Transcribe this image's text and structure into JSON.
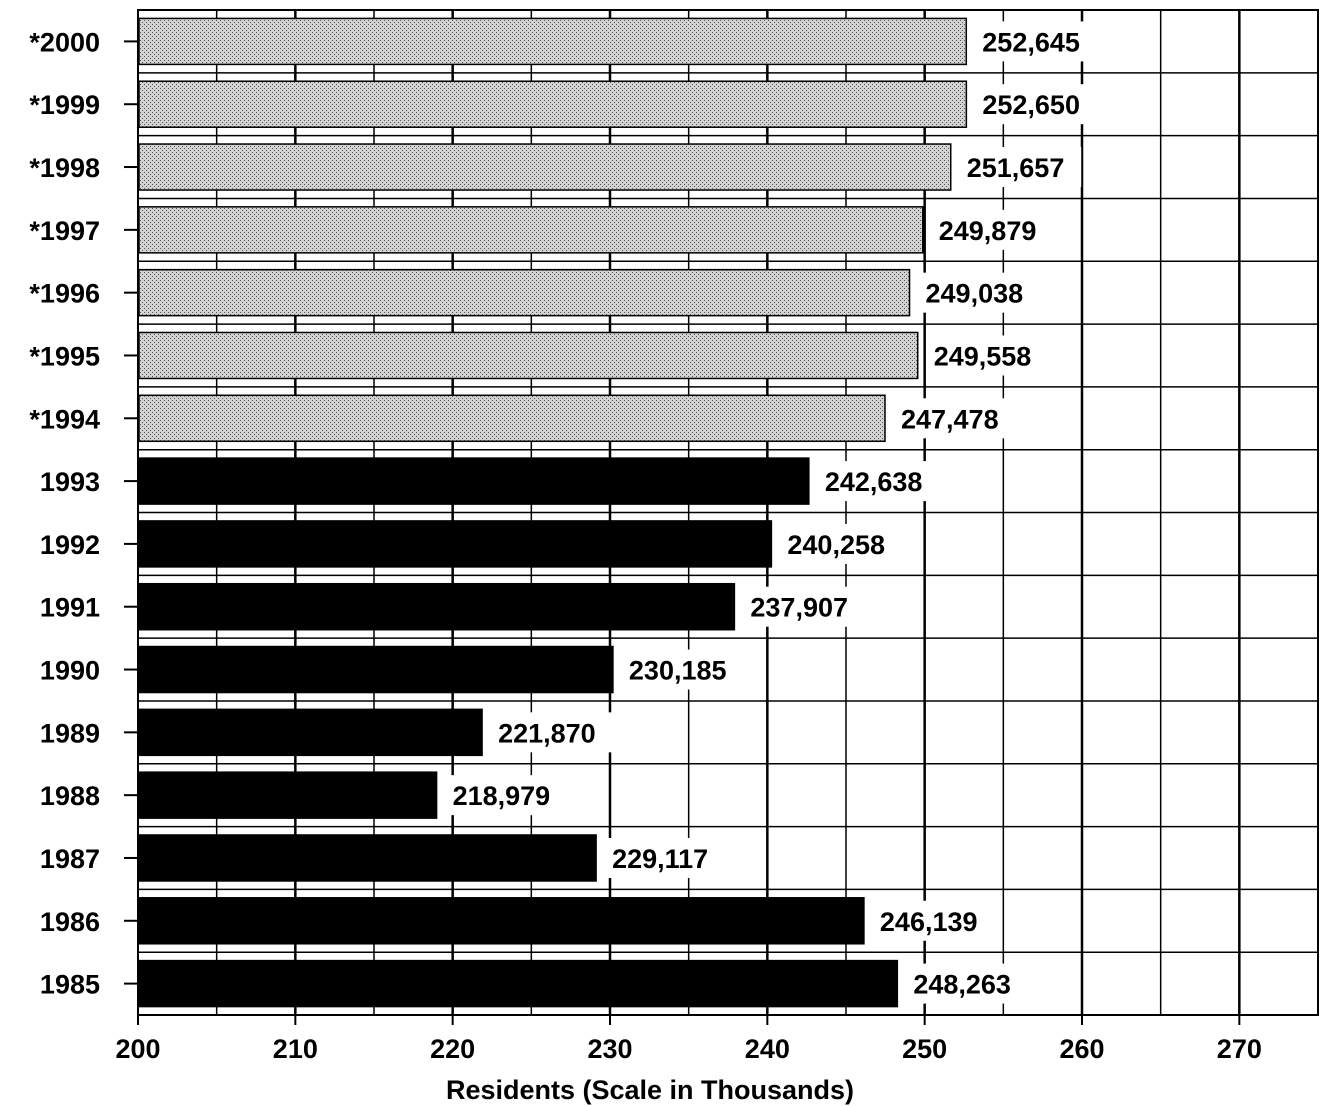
{
  "chart_data": {
    "type": "bar",
    "orientation": "horizontal",
    "xlabel": "Residents  (Scale in Thousands)",
    "xlim": [
      200,
      275
    ],
    "xticks": [
      200,
      210,
      220,
      230,
      240,
      250,
      260,
      270
    ],
    "categories": [
      "*2000",
      "*1999",
      "*1998",
      "*1997",
      "*1996",
      "*1995",
      "*1994",
      "1993",
      "1992",
      "1991",
      "1990",
      "1989",
      "1988",
      "1987",
      "1986",
      "1985"
    ],
    "values": [
      252645,
      252650,
      251657,
      249879,
      249038,
      249558,
      247478,
      242638,
      240258,
      237907,
      230185,
      221870,
      218979,
      229117,
      246139,
      248263
    ],
    "value_labels": [
      "252,645",
      "252,650",
      "251,657",
      "249,879",
      "249,038",
      "249,558",
      "247,478",
      "242,638",
      "240,258",
      "237,907",
      "230,185",
      "221,870",
      "218,979",
      "229,117",
      "246,139",
      "248,263"
    ],
    "projected": [
      true,
      true,
      true,
      true,
      true,
      true,
      true,
      false,
      false,
      false,
      false,
      false,
      false,
      false,
      false,
      false
    ],
    "grid": true,
    "colors": {
      "projected": "#bdbdbd",
      "actual": "#000000",
      "grid": "#000000"
    }
  }
}
